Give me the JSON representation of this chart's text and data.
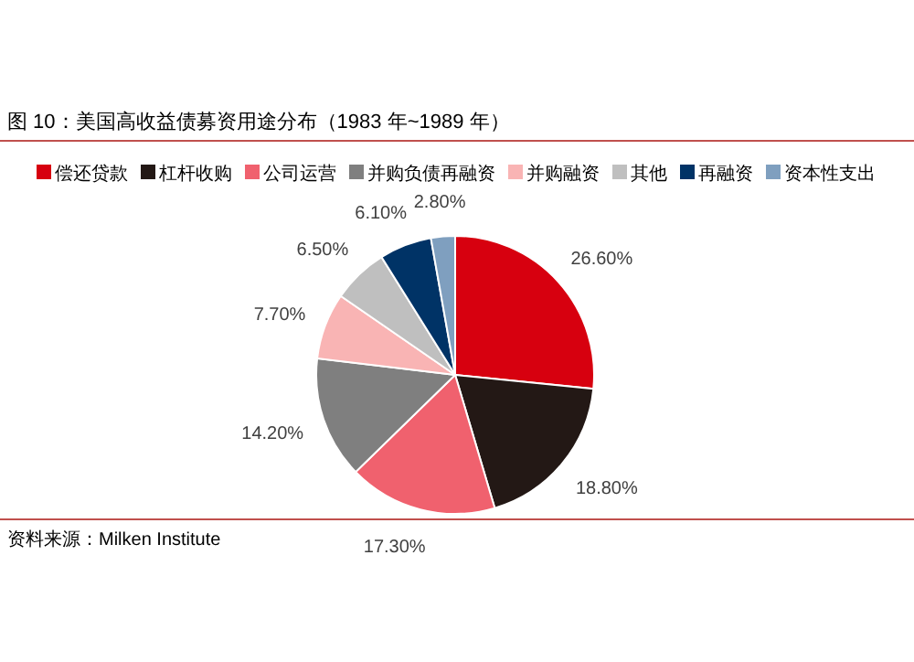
{
  "chart_data": {
    "type": "pie",
    "title": "图 10：美国高收益债募资用途分布（1983 年~1989 年）",
    "categories": [
      "偿还贷款",
      "杠杆收购",
      "公司运营",
      "并购负债再融资",
      "并购融资",
      "其他",
      "再融资",
      "资本性支出"
    ],
    "values": [
      26.6,
      18.8,
      17.3,
      14.2,
      7.7,
      6.5,
      6.1,
      2.8
    ],
    "value_labels": [
      "26.60%",
      "18.80%",
      "17.30%",
      "14.20%",
      "7.70%",
      "6.50%",
      "6.10%",
      "2.80%"
    ],
    "colors": [
      "#d7000f",
      "#231815",
      "#f0616e",
      "#7f7f7f",
      "#f9b4b4",
      "#bfbfbf",
      "#003366",
      "#7f9fbf"
    ],
    "legend": "top",
    "annotations": [
      "资料来源：Milken Institute"
    ]
  }
}
